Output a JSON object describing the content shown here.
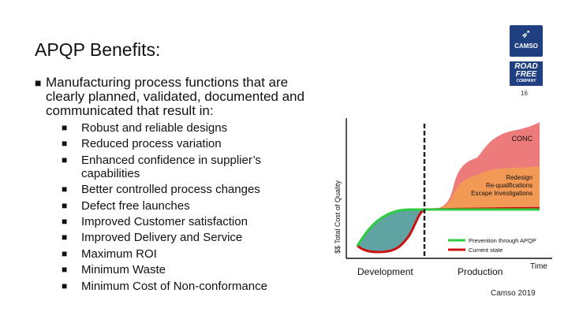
{
  "slide": {
    "title": "APQP Benefits:",
    "main_bullet": "Manufacturing process functions that are clearly planned, validated, documented and communicated that result in:",
    "sub_bullets": [
      "Robust and reliable designs",
      "Reduced process variation",
      "Enhanced confidence in supplier’s capabilities",
      "Better controlled process changes",
      "Defect free launches",
      "Improved Customer satisfaction",
      "Improved Delivery and Service",
      "Maximum ROI",
      "Minimum Waste",
      "Minimum Cost of Non-conformance"
    ],
    "page_number": "16",
    "copyright": "Camso 2019"
  },
  "logos": {
    "camso": "CAMSO",
    "road_free_line1": "ROAD",
    "road_free_line2": "FREE",
    "road_free_line3": "COMPANY"
  },
  "chart_data": {
    "type": "area",
    "ylabel": "$$ Total Cost of Quality",
    "xlabel": "Time",
    "phases": [
      "Development",
      "Production"
    ],
    "region_labels": {
      "conc": "CONC",
      "redesign": [
        "Redesign",
        "Re-qualifications",
        "Escape Investigations"
      ]
    },
    "legend": [
      {
        "name": "Prevention through APQP",
        "color": "#2ecc40"
      },
      {
        "name": "Current state",
        "color": "#cc1111"
      }
    ],
    "colors": {
      "conc_fill": "#ee7b7b",
      "redesign_fill": "#f29a55",
      "prevention_fill": "#5fa3a3",
      "green_line": "#2ecc40",
      "red_line": "#cc1111",
      "divider": "#222222"
    }
  }
}
